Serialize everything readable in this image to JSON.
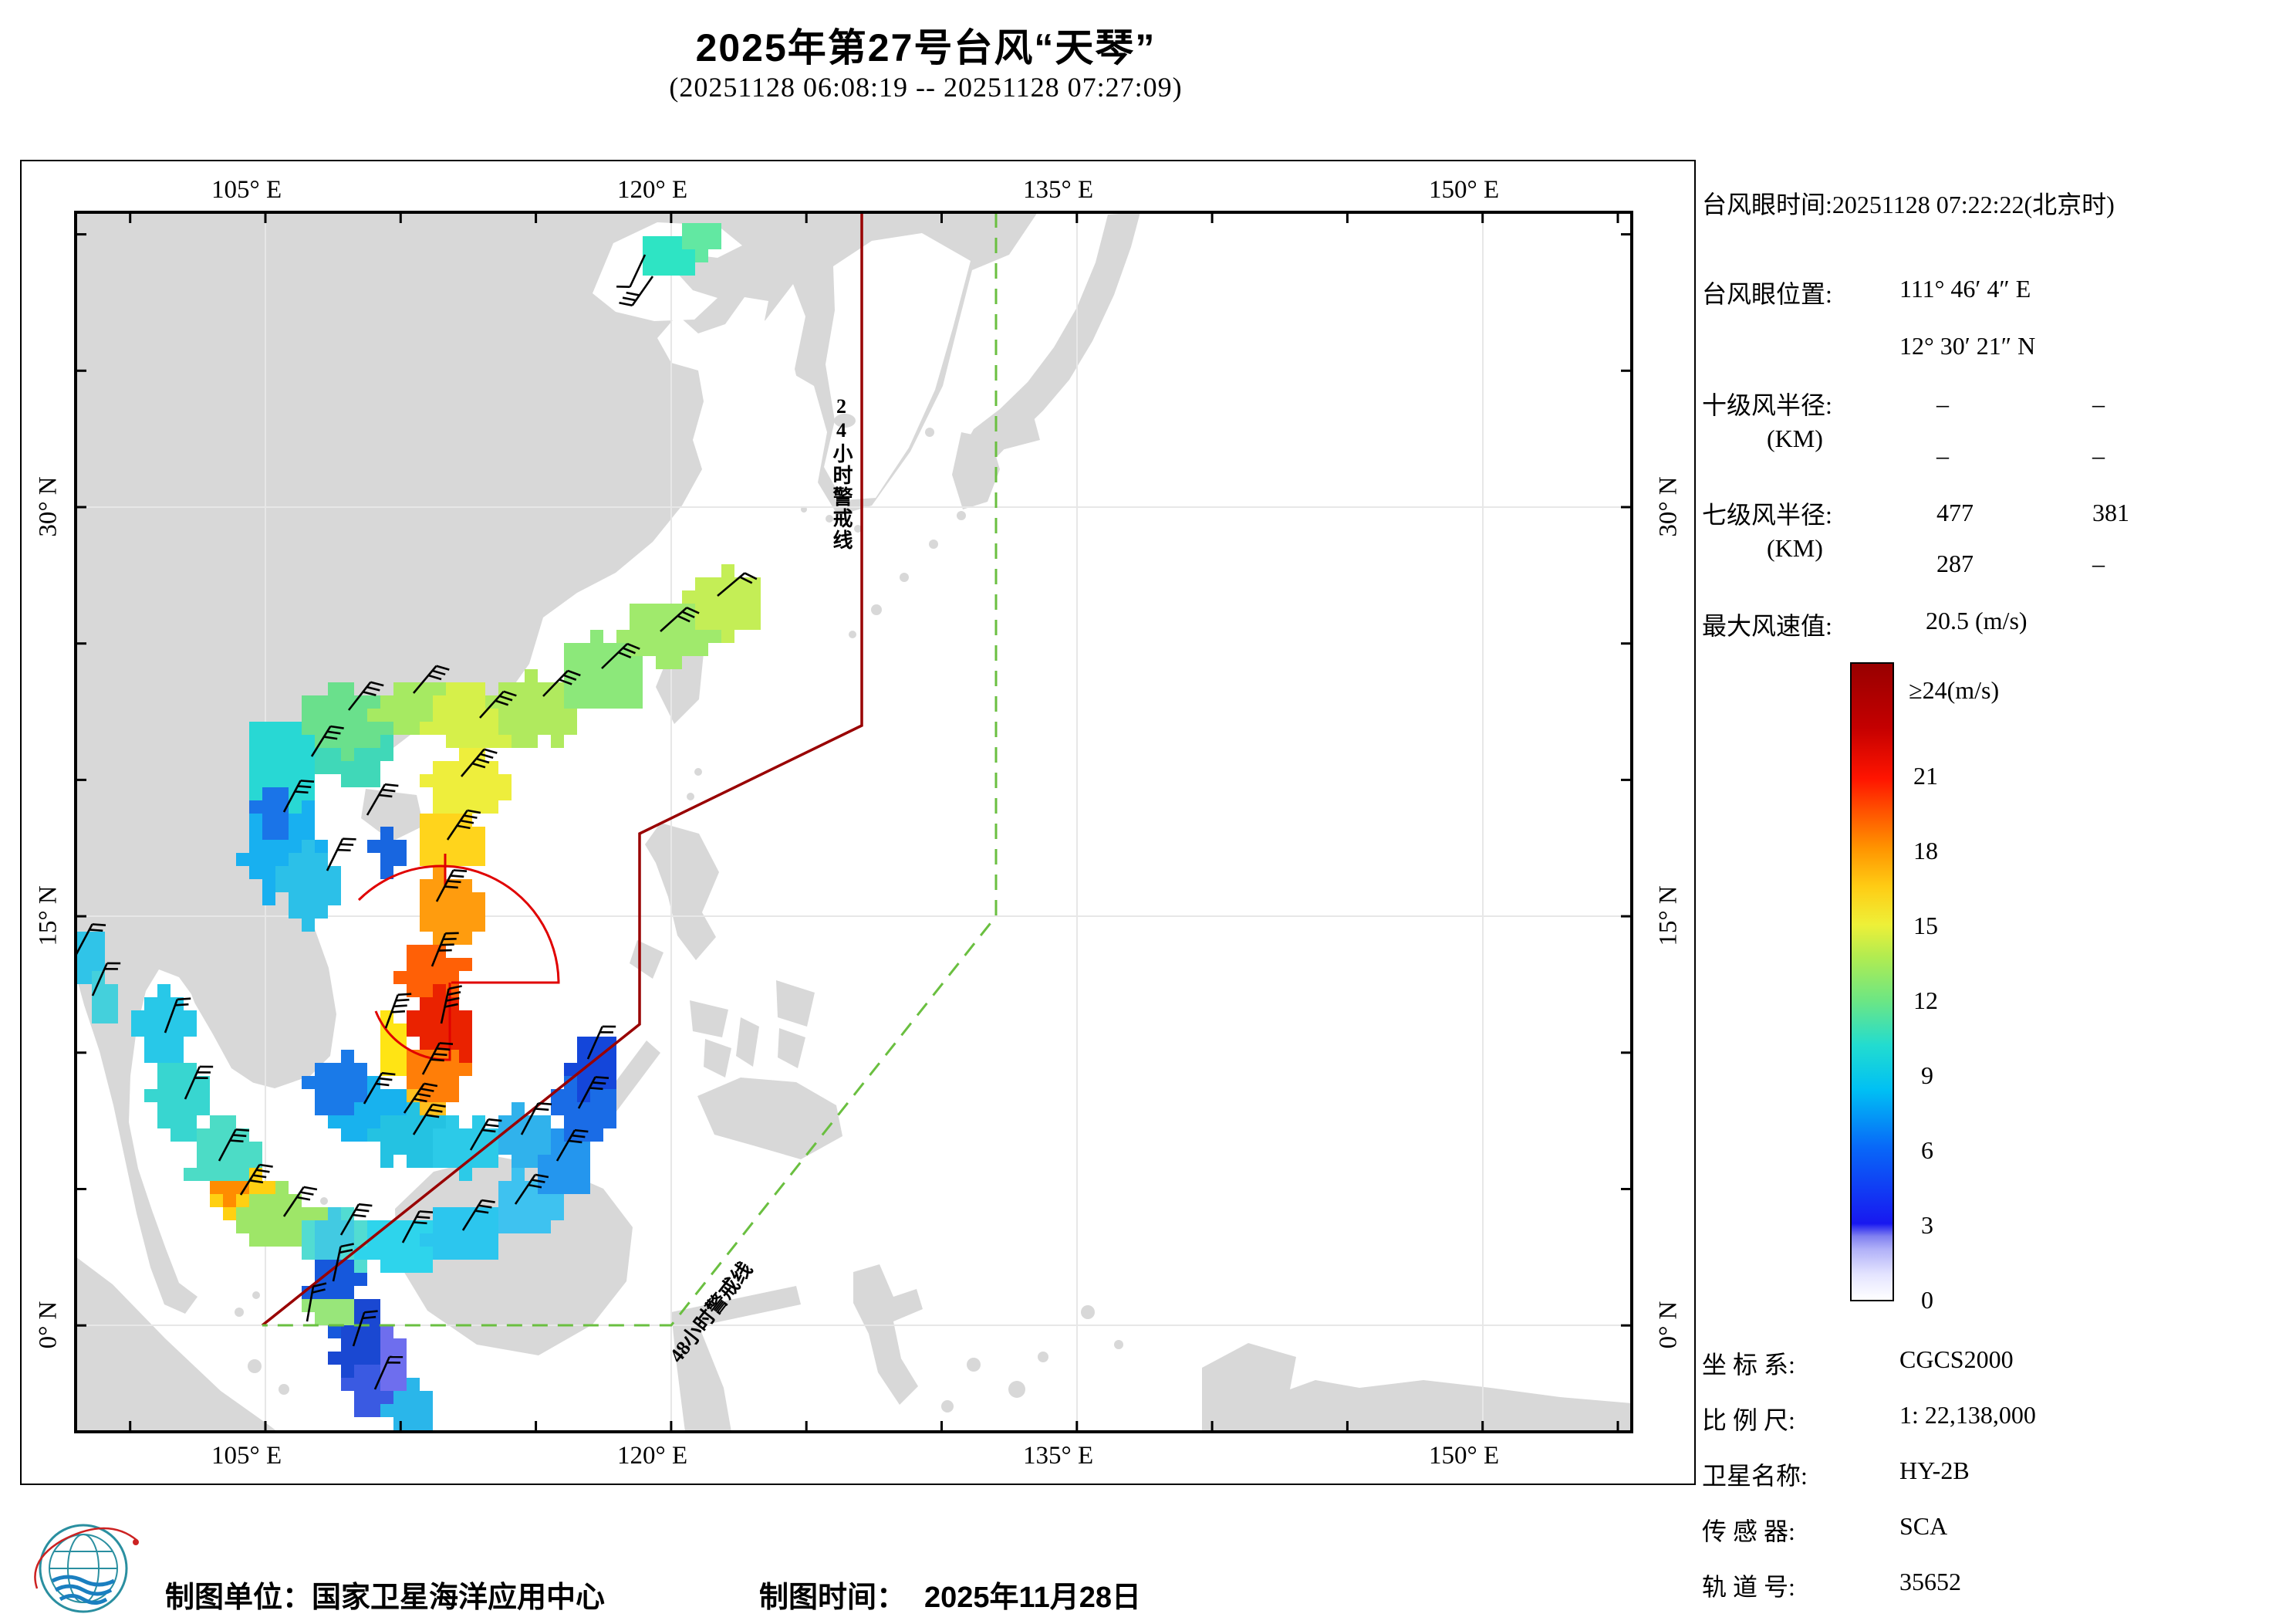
{
  "title": "2025年第27号台风“天琴”",
  "subtitle": "(20251128 06:08:19 -- 20251128 07:27:09)",
  "info": {
    "eye_time_line": "台风眼时间:20251128 07:22:22(北京时)",
    "eye_pos_label": "台风眼位置:",
    "eye_pos_e": "111° 46′ 4″ E",
    "eye_pos_n": "12° 30′ 21″ N",
    "r10_label": "十级风半径:",
    "r10_unit": "(KM)",
    "r10_v1": "–",
    "r10_v2": "–",
    "r10_v3": "–",
    "r10_v4": "–",
    "r7_label": "七级风半径:",
    "r7_unit": "(KM)",
    "r7_v1": "477",
    "r7_v2": "381",
    "r7_v3": "287",
    "r7_v4": "–",
    "vmax_label": "最大风速值:",
    "vmax_value": "20.5 (m/s)"
  },
  "legend": {
    "title": "≥24(m/s)",
    "ticks": [
      "21",
      "18",
      "15",
      "12",
      "9",
      "6",
      "3",
      "0"
    ],
    "stops": [
      [
        0,
        "#ffffff"
      ],
      [
        4,
        "#e4e4ff"
      ],
      [
        8,
        "#b0b0f8"
      ],
      [
        10,
        "#8080f0"
      ],
      [
        12,
        "#1818f0"
      ],
      [
        24,
        "#0868f8"
      ],
      [
        33,
        "#00c0f4"
      ],
      [
        40,
        "#22dcd0"
      ],
      [
        47,
        "#6ce684"
      ],
      [
        54,
        "#b2ec50"
      ],
      [
        59,
        "#eef038"
      ],
      [
        65,
        "#ffcc14"
      ],
      [
        71,
        "#ff9400"
      ],
      [
        77,
        "#ff5000"
      ],
      [
        82,
        "#ff1400"
      ],
      [
        90,
        "#c40000"
      ],
      [
        100,
        "#980000"
      ]
    ]
  },
  "meta": {
    "coord_label": "坐 标 系:",
    "coord_value": "CGCS2000",
    "scale_label": "比 例 尺:",
    "scale_value": "1: 22,138,000",
    "sat_label": "卫星名称:",
    "sat_value": "HY-2B",
    "sensor_label": "传 感 器:",
    "sensor_value": "SCA",
    "orbit_label": "轨 道 号:",
    "orbit_value": "35652"
  },
  "footer": {
    "agency_label": "制图单位：",
    "agency_value": "国家卫星海洋应用中心",
    "date_label": "制图时间：",
    "date_value": "2025年11月28日"
  },
  "map": {
    "lon_labels": [
      "105° E",
      "120° E",
      "135° E",
      "150° E"
    ],
    "lat_labels": [
      "30° N",
      "15° N",
      "0° N"
    ],
    "warning24_label": "24小时警戒线",
    "warning48_label": "48小时警戒线",
    "colors": {
      "land": "#d8d8d8",
      "ocean": "#ffffff",
      "grid": "#e7e7e7",
      "warning24": "#990000",
      "warning48": "#6abf40",
      "sector": "#e00000",
      "barb": "#000000"
    },
    "swath_blobs": [
      [
        "#18b0f0",
        352,
        1068,
        52,
        85
      ],
      [
        "#28d8d4",
        366,
        986,
        52,
        62
      ],
      [
        "#40d8b8",
        452,
        968,
        55,
        45
      ],
      [
        "#6ae08c",
        446,
        925,
        65,
        42
      ],
      [
        "#a6ea62",
        530,
        904,
        62,
        40
      ],
      [
        "#d6f04a",
        612,
        928,
        62,
        42
      ],
      [
        "#b0ea5e",
        688,
        904,
        56,
        44
      ],
      [
        "#8ce87a",
        766,
        868,
        58,
        48
      ],
      [
        "#a0ea6c",
        850,
        818,
        58,
        48
      ],
      [
        "#c4ee56",
        928,
        772,
        48,
        42
      ],
      [
        "#eeee3c",
        600,
        1008,
        55,
        40
      ],
      [
        "#ffd41c",
        580,
        1088,
        48,
        45
      ],
      [
        "#ff9c0e",
        566,
        1172,
        45,
        48
      ],
      [
        "#ff6006",
        560,
        1254,
        42,
        52
      ],
      [
        "#ea2200",
        568,
        1322,
        40,
        48
      ],
      [
        "#ff7e08",
        548,
        1390,
        44,
        40
      ],
      [
        "#ffc01e",
        520,
        1442,
        48,
        36
      ],
      [
        "#2cc0e8",
        398,
        1136,
        36,
        52
      ],
      [
        "#1a74e8",
        356,
        1032,
        26,
        36
      ],
      [
        "#1866e0",
        500,
        1104,
        22,
        26
      ],
      [
        "#ffe414",
        498,
        1348,
        22,
        40
      ],
      [
        "#2ee4c4",
        852,
        322,
        40,
        32
      ],
      [
        "#62e8a2",
        898,
        300,
        32,
        26
      ],
      [
        "#30c4e8",
        96,
        1238,
        28,
        40
      ],
      [
        "#44d0dc",
        118,
        1292,
        22,
        30
      ],
      [
        "#28c8e8",
        206,
        1330,
        36,
        50
      ],
      [
        "#38d6d0",
        232,
        1418,
        40,
        55
      ],
      [
        "#4cdcc6",
        276,
        1498,
        45,
        50
      ],
      [
        "#ffd012",
        302,
        1546,
        36,
        30
      ],
      [
        "#ff8c00",
        292,
        1532,
        20,
        18
      ],
      [
        "#9ee668",
        356,
        1574,
        50,
        40
      ],
      [
        "#52dcd2",
        432,
        1598,
        55,
        40
      ],
      [
        "#2ed4ec",
        516,
        1608,
        55,
        40
      ],
      [
        "#2cc6ee",
        598,
        1592,
        50,
        40
      ],
      [
        "#3ec2f0",
        666,
        1558,
        45,
        40
      ],
      [
        "#2496ee",
        720,
        1502,
        40,
        50
      ],
      [
        "#1a6ce6",
        748,
        1434,
        36,
        50
      ],
      [
        "#1446da",
        760,
        1370,
        30,
        45
      ],
      [
        "#18b2ee",
        472,
        1428,
        55,
        40
      ],
      [
        "#1a7ae8",
        432,
        1394,
        40,
        36
      ],
      [
        "#24c2e2",
        522,
        1468,
        50,
        36
      ],
      [
        "#2ccae8",
        602,
        1488,
        50,
        36
      ],
      [
        "#30b2ec",
        664,
        1468,
        40,
        36
      ],
      [
        "#1658dc",
        432,
        1658,
        36,
        50
      ],
      [
        "#1a48d2",
        458,
        1740,
        36,
        50
      ],
      [
        "#3a5ae2",
        482,
        1798,
        36,
        40
      ],
      [
        "#6e6eee",
        506,
        1758,
        26,
        36
      ],
      [
        "#2ab6ea",
        530,
        1818,
        30,
        30
      ],
      [
        "#42cae2",
        416,
        1600,
        30,
        30
      ],
      [
        "#98e67a",
        420,
        1688,
        30,
        22
      ]
    ],
    "barbs": [
      [
        404,
        980,
        32,
        3
      ],
      [
        368,
        1052,
        28,
        3
      ],
      [
        452,
        920,
        38,
        3
      ],
      [
        536,
        898,
        40,
        3
      ],
      [
        622,
        930,
        42,
        3
      ],
      [
        704,
        902,
        44,
        3
      ],
      [
        780,
        866,
        46,
        3
      ],
      [
        856,
        818,
        48,
        3
      ],
      [
        930,
        772,
        50,
        2
      ],
      [
        598,
        1006,
        40,
        4
      ],
      [
        580,
        1088,
        34,
        4
      ],
      [
        566,
        1168,
        28,
        4
      ],
      [
        560,
        1252,
        22,
        4
      ],
      [
        572,
        1326,
        12,
        4
      ],
      [
        548,
        1392,
        28,
        4
      ],
      [
        524,
        1442,
        34,
        4
      ],
      [
        476,
        1056,
        30,
        3
      ],
      [
        424,
        1128,
        26,
        3
      ],
      [
        500,
        1332,
        20,
        4
      ],
      [
        836,
        330,
        205,
        1
      ],
      [
        846,
        358,
        215,
        3
      ],
      [
        98,
        1238,
        28,
        2
      ],
      [
        120,
        1290,
        24,
        2
      ],
      [
        214,
        1338,
        20,
        2
      ],
      [
        240,
        1424,
        24,
        3
      ],
      [
        284,
        1504,
        28,
        3
      ],
      [
        312,
        1548,
        32,
        4
      ],
      [
        368,
        1576,
        34,
        3
      ],
      [
        442,
        1600,
        30,
        3
      ],
      [
        522,
        1610,
        28,
        3
      ],
      [
        600,
        1594,
        32,
        3
      ],
      [
        668,
        1560,
        34,
        3
      ],
      [
        722,
        1504,
        30,
        3
      ],
      [
        750,
        1436,
        28,
        3
      ],
      [
        762,
        1372,
        24,
        2
      ],
      [
        472,
        1430,
        30,
        3
      ],
      [
        536,
        1470,
        32,
        3
      ],
      [
        610,
        1490,
        30,
        3
      ],
      [
        676,
        1470,
        28,
        2
      ],
      [
        432,
        1660,
        12,
        2
      ],
      [
        458,
        1744,
        18,
        2
      ],
      [
        486,
        1800,
        24,
        2
      ],
      [
        398,
        1712,
        10,
        2
      ]
    ]
  }
}
